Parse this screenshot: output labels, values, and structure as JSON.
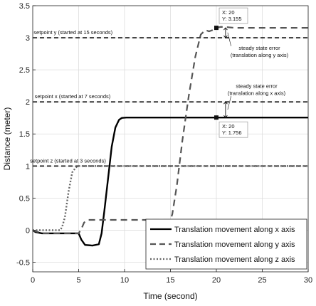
{
  "chart_data": {
    "type": "line",
    "xlabel": "Time (second)",
    "ylabel": "Distance (meter)",
    "xlim": [
      0,
      30
    ],
    "ylim": [
      -0.65,
      3.5
    ],
    "xticks": [
      "0",
      "5",
      "10",
      "15",
      "20",
      "25",
      "30"
    ],
    "yticks": [
      "-0.5",
      "0",
      "0.5",
      "1",
      "1.5",
      "2",
      "2.5",
      "3",
      "3.5"
    ],
    "grid": true,
    "legend_position": "bottom-right",
    "series": [
      {
        "name": "Translation movement along x axis",
        "style": "solid",
        "color": "#000000",
        "x": [
          0,
          0.3,
          1,
          5,
          5.3,
          5.7,
          6.5,
          7.2,
          7.5,
          7.8,
          8.2,
          8.6,
          9.0,
          9.4,
          9.7,
          10.2,
          11,
          20,
          30
        ],
        "y": [
          0,
          -0.03,
          -0.05,
          -0.05,
          -0.15,
          -0.23,
          -0.24,
          -0.22,
          -0.05,
          0.3,
          0.8,
          1.3,
          1.6,
          1.72,
          1.75,
          1.756,
          1.756,
          1.756,
          1.756
        ]
      },
      {
        "name": "Translation movement along y axis",
        "style": "dashed",
        "color": "#555555",
        "x": [
          0,
          1,
          5,
          5.3,
          5.6,
          6,
          7,
          15,
          15.2,
          15.7,
          16.3,
          17,
          17.7,
          18.3,
          18.8,
          19.2,
          19.6,
          20,
          20.5,
          21.2,
          22,
          30
        ],
        "y": [
          0,
          -0.05,
          -0.05,
          0.02,
          0.12,
          0.16,
          0.16,
          0.16,
          0.25,
          0.7,
          1.4,
          2.1,
          2.7,
          3.05,
          3.12,
          3.1,
          3.12,
          3.155,
          3.17,
          3.165,
          3.155,
          3.155
        ]
      },
      {
        "name": "Translation movement along z axis",
        "style": "dotted",
        "color": "#666666",
        "x": [
          0,
          3,
          3.2,
          3.5,
          3.9,
          4.3,
          4.7,
          5.0,
          5.3,
          30
        ],
        "y": [
          0,
          0,
          0.05,
          0.2,
          0.6,
          0.9,
          0.98,
          1.0,
          1.0,
          1.0
        ]
      }
    ],
    "reference_lines": [
      {
        "label": "setpoint y (started at 15 seconds)",
        "y": 3
      },
      {
        "label": "setpoint x (started at 7 seconds)",
        "y": 2
      },
      {
        "label": "setpoint z (started at 3 seconds)",
        "y": 1
      }
    ],
    "datatips": [
      {
        "line1": "X: 20",
        "line2": "Y: 3.155",
        "x": 20,
        "y": 3.155
      },
      {
        "line1": "X: 20",
        "line2": "Y: 1.756",
        "x": 20,
        "y": 1.756
      }
    ],
    "annotations": [
      {
        "line1": "steady state error",
        "line2": "(translation along y axis)"
      },
      {
        "line1": "steady state error",
        "line2": "(translation along x axis)"
      }
    ]
  }
}
